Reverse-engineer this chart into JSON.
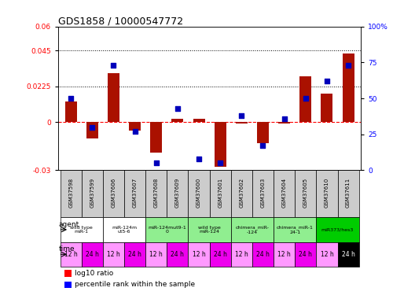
{
  "title": "GDS1858 / 10000547772",
  "samples": [
    "GSM37598",
    "GSM37599",
    "GSM37606",
    "GSM37607",
    "GSM37608",
    "GSM37609",
    "GSM37600",
    "GSM37601",
    "GSM37602",
    "GSM37603",
    "GSM37604",
    "GSM37605",
    "GSM37610",
    "GSM37611"
  ],
  "log10_ratio": [
    0.013,
    -0.01,
    0.031,
    -0.005,
    -0.019,
    0.002,
    0.002,
    -0.028,
    -0.001,
    -0.013,
    -0.001,
    0.029,
    0.018,
    0.043
  ],
  "percentile_rank": [
    50,
    30,
    73,
    27,
    5,
    43,
    8,
    5,
    38,
    17,
    36,
    50,
    62,
    73
  ],
  "agents": [
    {
      "label": "wild type\nmiR-1",
      "cols": [
        0,
        1
      ],
      "color": "#ffffff"
    },
    {
      "label": "miR-124m\nut5-6",
      "cols": [
        2,
        3
      ],
      "color": "#ffffff"
    },
    {
      "label": "miR-124mut9-1\n0",
      "cols": [
        4,
        5
      ],
      "color": "#90ee90"
    },
    {
      "label": "wild type\nmiR-124",
      "cols": [
        6,
        7
      ],
      "color": "#90ee90"
    },
    {
      "label": "chimera_miR-\n-124",
      "cols": [
        8,
        9
      ],
      "color": "#90ee90"
    },
    {
      "label": "chimera_miR-1\n24-1",
      "cols": [
        10,
        11
      ],
      "color": "#90ee90"
    },
    {
      "label": "miR373/hes3",
      "cols": [
        12,
        13
      ],
      "color": "#00cc00"
    }
  ],
  "times": [
    "12 h",
    "24 h",
    "12 h",
    "24 h",
    "12 h",
    "24 h",
    "12 h",
    "24 h",
    "12 h",
    "24 h",
    "12 h",
    "24 h",
    "12 h",
    "24 h"
  ],
  "ylim_left": [
    -0.03,
    0.06
  ],
  "ylim_right": [
    0,
    100
  ],
  "yticks_left": [
    -0.03,
    0,
    0.0225,
    0.045,
    0.06
  ],
  "yticks_right": [
    0,
    25,
    50,
    75,
    100
  ],
  "hlines": [
    0.0225,
    0.045
  ],
  "bar_color": "#aa1100",
  "dot_color": "#0000bb",
  "dot_size": 22,
  "bar_width": 0.55
}
